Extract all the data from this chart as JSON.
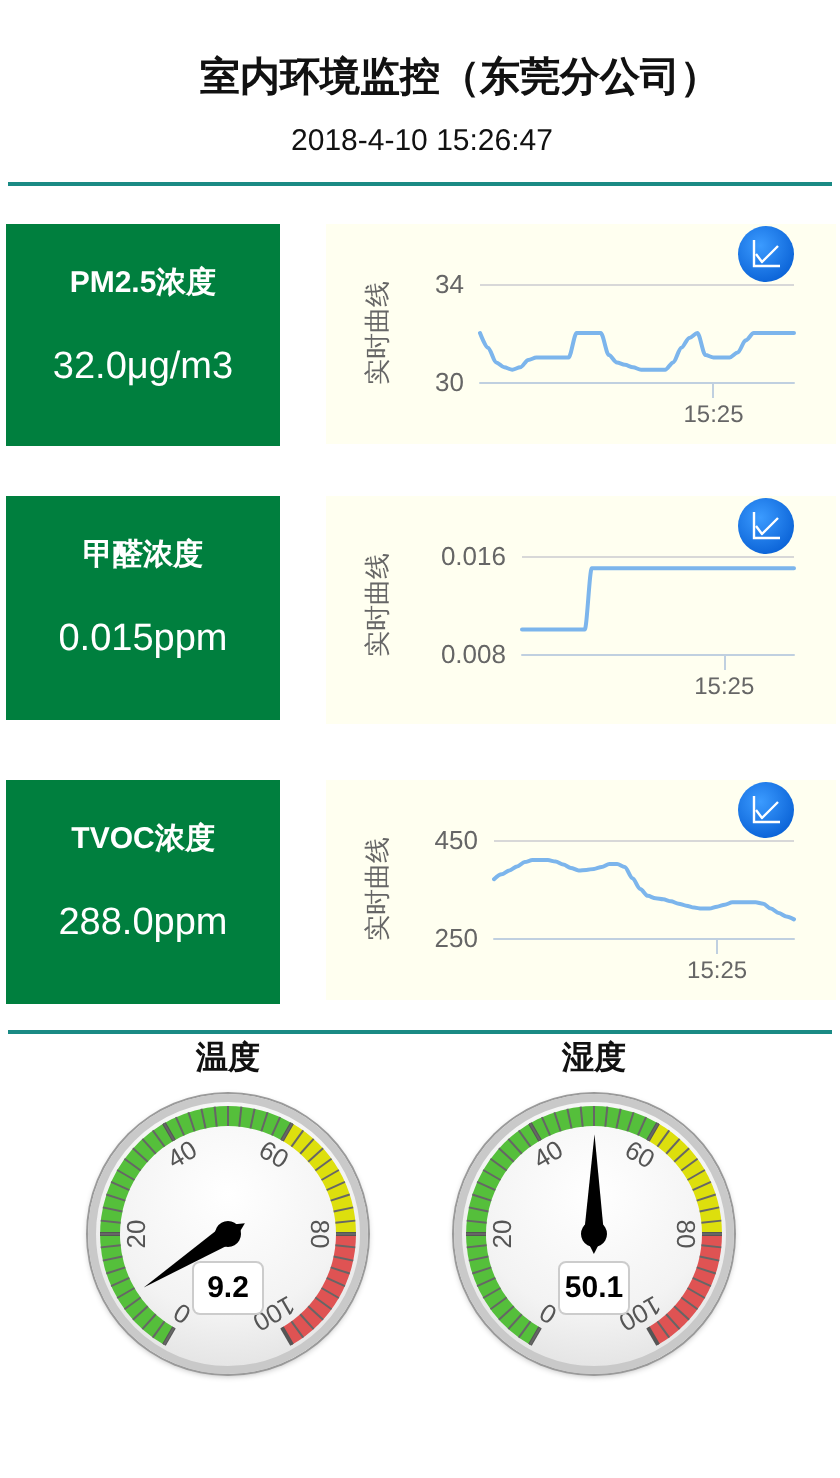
{
  "chart_data": [
    {
      "type": "other",
      "title": "室内环境监控（东莞分公司）",
      "subtitle": "2018-4-10 15:26:47"
    },
    {
      "type": "other",
      "title": "PM2.5浓度",
      "annotations": [
        "32.0μg/m3"
      ]
    },
    {
      "type": "line",
      "ylabel": "实时曲线",
      "color": "#7cb5ec",
      "grid": "y",
      "ylim": [
        30,
        34
      ],
      "yticks": [
        30,
        34
      ],
      "categories": [
        null,
        null,
        null,
        null,
        null,
        null,
        null,
        null,
        null,
        null,
        null,
        null,
        null,
        null,
        null,
        null,
        null,
        null,
        null,
        null,
        null,
        null,
        null,
        null,
        null,
        null,
        null,
        null,
        null,
        "15:25",
        null,
        null,
        null,
        null,
        null,
        null,
        null,
        null,
        null,
        null
      ],
      "values": [
        32,
        31.4,
        30.8,
        30.6,
        30.5,
        30.6,
        30.9,
        31,
        31,
        31,
        31,
        31,
        32,
        32,
        32,
        32,
        31.1,
        30.8,
        30.7,
        30.6,
        30.5,
        30.5,
        30.5,
        30.5,
        30.8,
        31.4,
        31.8,
        32,
        31.1,
        31,
        31,
        31,
        31.2,
        31.7,
        32,
        32,
        32,
        32,
        32,
        32
      ]
    },
    {
      "type": "other",
      "title": "甲醛浓度",
      "annotations": [
        "0.015ppm"
      ]
    },
    {
      "type": "line",
      "ylabel": "实时曲线",
      "color": "#7cb5ec",
      "grid": "y",
      "ylim": [
        0.008,
        0.016
      ],
      "yticks": [
        0.008,
        0.016
      ],
      "categories": [
        null,
        null,
        null,
        null,
        null,
        null,
        null,
        null,
        null,
        null,
        null,
        null,
        null,
        null,
        null,
        null,
        null,
        null,
        null,
        null,
        null,
        null,
        null,
        null,
        null,
        null,
        null,
        null,
        null,
        "15:25",
        null,
        null,
        null,
        null,
        null,
        null,
        null,
        null,
        null,
        null
      ],
      "values": [
        0.01,
        0.01,
        0.01,
        0.01,
        0.01,
        0.01,
        0.01,
        0.01,
        0.01,
        0.01,
        0.015,
        0.015,
        0.015,
        0.015,
        0.015,
        0.015,
        0.015,
        0.015,
        0.015,
        0.015,
        0.015,
        0.015,
        0.015,
        0.015,
        0.015,
        0.015,
        0.015,
        0.015,
        0.015,
        0.015,
        0.015,
        0.015,
        0.015,
        0.015,
        0.015,
        0.015,
        0.015,
        0.015,
        0.015,
        0.015
      ]
    },
    {
      "type": "other",
      "title": "TVOC浓度",
      "annotations": [
        "288.0ppm"
      ]
    },
    {
      "type": "line",
      "ylabel": "实时曲线",
      "color": "#7cb5ec",
      "grid": "y",
      "ylim": [
        250,
        450
      ],
      "yticks": [
        250,
        450
      ],
      "categories": [
        null,
        null,
        null,
        null,
        null,
        null,
        null,
        null,
        null,
        null,
        null,
        null,
        null,
        null,
        null,
        null,
        null,
        null,
        null,
        null,
        null,
        null,
        null,
        null,
        null,
        null,
        null,
        null,
        null,
        "15:25",
        null,
        null,
        null,
        null,
        null,
        null,
        null,
        null,
        null,
        null
      ],
      "values": [
        370,
        380,
        388,
        396,
        405,
        409,
        409,
        409,
        406,
        400,
        393,
        388,
        389,
        391,
        395,
        401,
        401,
        395,
        372,
        350,
        336,
        331,
        329,
        325,
        320,
        316,
        312,
        310,
        310,
        314,
        318,
        323,
        323,
        323,
        323,
        320,
        310,
        301,
        294,
        288
      ]
    },
    {
      "type": "other",
      "title": "温度",
      "values": [
        9.2
      ],
      "data_labels": true,
      "annotations": [
        "0",
        "20",
        "40",
        "60",
        "80",
        "100"
      ]
    },
    {
      "type": "donut",
      "categories": [
        null,
        null,
        null
      ],
      "values": [
        60,
        20,
        20
      ],
      "colors": [
        "#55bf3b",
        "#dddf0d",
        "#df5353"
      ]
    },
    {
      "type": "other",
      "title": "湿度",
      "values": [
        50.1
      ],
      "data_labels": true,
      "annotations": [
        "0",
        "20",
        "40",
        "60",
        "80",
        "100"
      ]
    },
    {
      "type": "donut",
      "categories": [
        null,
        null,
        null
      ],
      "values": [
        60,
        20,
        20
      ],
      "colors": [
        "#55bf3b",
        "#dddf0d",
        "#df5353"
      ]
    }
  ]
}
